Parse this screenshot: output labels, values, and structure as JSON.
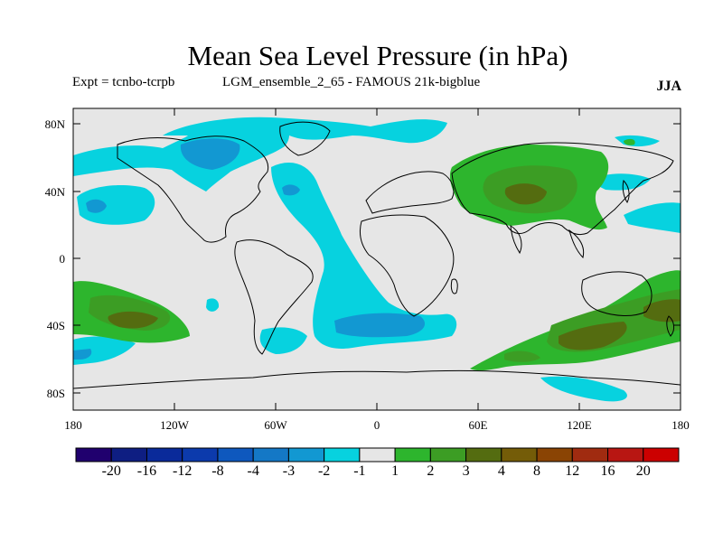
{
  "title": "Mean Sea Level Pressure (in hPa)",
  "experiment": "Expt = tcnbo-tcrpb",
  "run_label": "LGM_ensemble_2_65 - FAMOUS 21k-bigblue",
  "season": "JJA",
  "map": {
    "projection": "equirectangular",
    "lon_range": [
      -180,
      180
    ],
    "lat_range": [
      -90,
      90
    ],
    "y_ticks": [
      {
        "label": "80N"
      },
      {
        "label": "40N"
      },
      {
        "label": "0"
      },
      {
        "label": "40S"
      },
      {
        "label": "80S"
      }
    ],
    "x_ticks": [
      {
        "label": "180"
      },
      {
        "label": "120W"
      },
      {
        "label": "60W"
      },
      {
        "label": "0"
      },
      {
        "label": "60E"
      },
      {
        "label": "120E"
      },
      {
        "label": "180"
      }
    ]
  },
  "colorbar": {
    "colors": [
      "#20006e",
      "#0e1e82",
      "#0a2a9a",
      "#0c3aac",
      "#0e58be",
      "#1478c6",
      "#1298d2",
      "#07d2df",
      "#e6e6e6",
      "#2db52d",
      "#3c9d24",
      "#546c10",
      "#745c08",
      "#8a4404",
      "#a02b10",
      "#b81612",
      "#cc0000"
    ],
    "labels": [
      "-20",
      "-16",
      "-12",
      "-8",
      "-4",
      "-3",
      "-2",
      "-1",
      "1",
      "2",
      "3",
      "4",
      "8",
      "12",
      "16",
      "20"
    ]
  },
  "field_colors": {
    "neutral": "#e6e6e6",
    "minus1": "#07d2df",
    "minus2": "#1298d2",
    "plus1": "#2db52d",
    "plus2": "#3c9d24",
    "plus3": "#546c10"
  }
}
